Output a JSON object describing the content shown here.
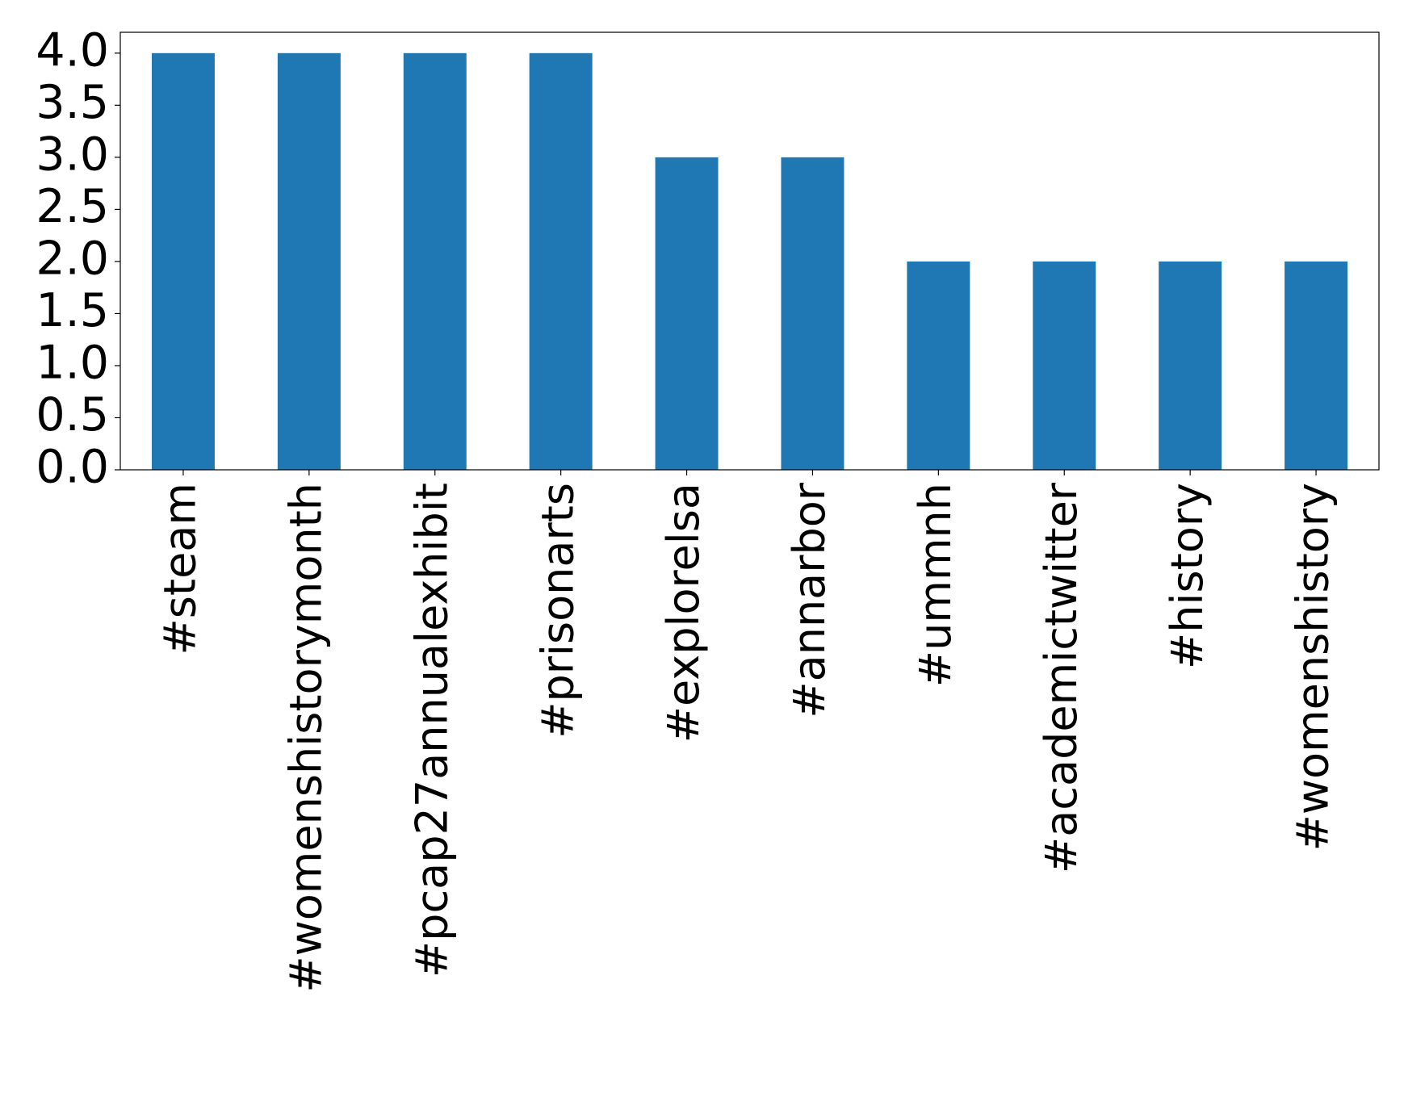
{
  "chart_data": {
    "type": "bar",
    "categories": [
      "#steam",
      "#womenshistorymonth",
      "#pcap27annualexhibit",
      "#prisonarts",
      "#explorelsa",
      "#annarbor",
      "#ummnh",
      "#academictwitter",
      "#history",
      "#womenshistory"
    ],
    "values": [
      4,
      4,
      4,
      4,
      3,
      3,
      2,
      2,
      2,
      2
    ],
    "color": "#1f77b4",
    "ylim": [
      0,
      4.2
    ],
    "yticks": [
      {
        "value": 0,
        "label": "0.0"
      },
      0.5,
      {
        "value": 1,
        "label": "1.0"
      },
      1.5,
      {
        "value": 2,
        "label": "2.0"
      },
      2.5,
      {
        "value": 3,
        "label": "3.0"
      },
      3.5,
      {
        "value": 4,
        "label": "4.0"
      }
    ],
    "grid": false
  }
}
